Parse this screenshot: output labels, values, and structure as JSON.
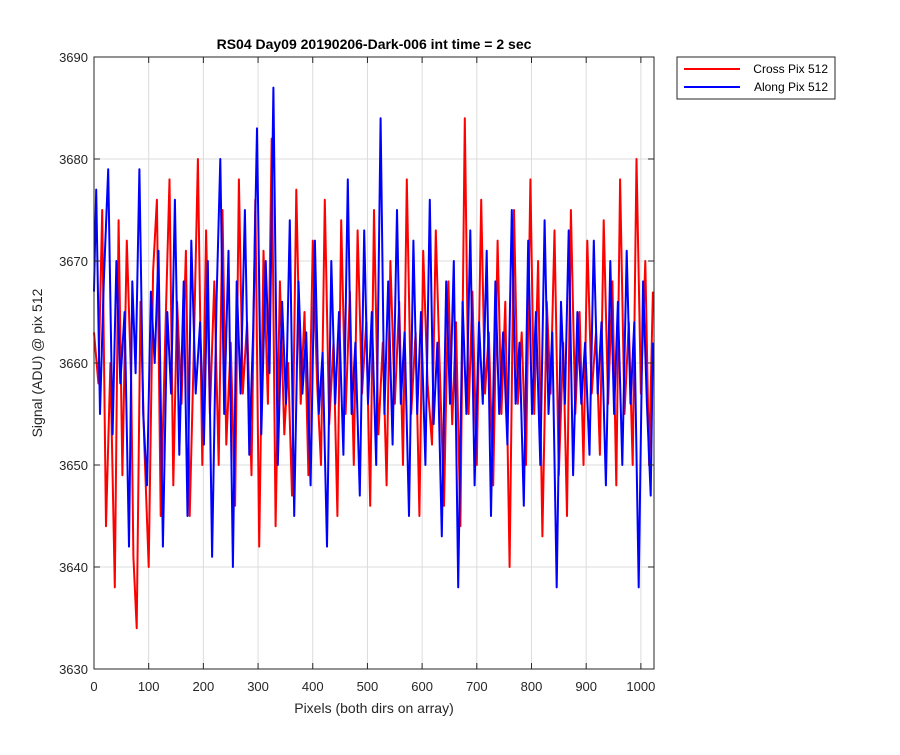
{
  "chart_data": {
    "type": "line",
    "title": "RS04 Day09 20190206-Dark-006 int time = 2 sec",
    "xlabel": "Pixels (both dirs on array)",
    "ylabel": "Signal (ADU) @ pix 512",
    "xlim": [
      0,
      1024
    ],
    "ylim": [
      3630,
      3690
    ],
    "xticks": [
      0,
      100,
      200,
      300,
      400,
      500,
      600,
      700,
      800,
      900,
      1000
    ],
    "yticks": [
      3630,
      3640,
      3650,
      3660,
      3670,
      3680,
      3690
    ],
    "grid": true,
    "legend_position": "outside-top-right",
    "series": [
      {
        "name": "Cross Pix 512",
        "color": "#ff0000",
        "x": [
          0,
          8,
          15,
          22,
          30,
          38,
          45,
          52,
          60,
          68,
          72,
          78,
          85,
          92,
          100,
          108,
          115,
          122,
          130,
          138,
          145,
          152,
          160,
          168,
          175,
          182,
          190,
          198,
          205,
          212,
          220,
          228,
          235,
          242,
          250,
          258,
          265,
          272,
          280,
          288,
          295,
          302,
          310,
          318,
          325,
          332,
          340,
          348,
          355,
          362,
          370,
          378,
          385,
          392,
          400,
          408,
          415,
          422,
          430,
          438,
          445,
          452,
          460,
          468,
          475,
          482,
          490,
          498,
          505,
          512,
          520,
          528,
          535,
          542,
          550,
          558,
          565,
          572,
          580,
          588,
          595,
          602,
          610,
          618,
          625,
          632,
          640,
          648,
          655,
          662,
          670,
          678,
          685,
          692,
          700,
          708,
          715,
          722,
          730,
          738,
          745,
          752,
          760,
          768,
          775,
          782,
          790,
          798,
          805,
          812,
          820,
          828,
          835,
          842,
          850,
          858,
          865,
          872,
          880,
          888,
          895,
          902,
          910,
          918,
          925,
          932,
          940,
          948,
          955,
          962,
          970,
          978,
          985,
          992,
          1000,
          1008,
          1015,
          1022
        ],
        "values": [
          3663,
          3658,
          3675,
          3644,
          3660,
          3638,
          3674,
          3649,
          3672,
          3658,
          3641,
          3634,
          3666,
          3652,
          3640,
          3669,
          3676,
          3645,
          3662,
          3678,
          3648,
          3666,
          3656,
          3671,
          3645,
          3660,
          3680,
          3650,
          3673,
          3655,
          3668,
          3650,
          3675,
          3652,
          3662,
          3646,
          3678,
          3657,
          3664,
          3649,
          3676,
          3642,
          3671,
          3656,
          3682,
          3644,
          3668,
          3653,
          3660,
          3647,
          3677,
          3656,
          3665,
          3649,
          3672,
          3658,
          3650,
          3676,
          3654,
          3662,
          3645,
          3674,
          3655,
          3667,
          3650,
          3673,
          3657,
          3664,
          3646,
          3675,
          3653,
          3662,
          3648,
          3670,
          3656,
          3666,
          3650,
          3678,
          3655,
          3663,
          3645,
          3671,
          3658,
          3652,
          3673,
          3660,
          3646,
          3668,
          3654,
          3664,
          3644,
          3684,
          3655,
          3667,
          3650,
          3676,
          3657,
          3663,
          3648,
          3672,
          3655,
          3666,
          3640,
          3675,
          3656,
          3663,
          3650,
          3678,
          3655,
          3670,
          3643,
          3666,
          3657,
          3673,
          3649,
          3662,
          3645,
          3675,
          3655,
          3665,
          3650,
          3672,
          3657,
          3663,
          3651,
          3674,
          3656,
          3668,
          3648,
          3678,
          3655,
          3664,
          3650,
          3680,
          3657,
          3670,
          3650,
          3667
        ]
      },
      {
        "name": "Along Pix 512",
        "color": "#0000ff",
        "x": [
          0,
          4,
          11,
          18,
          26,
          34,
          41,
          48,
          56,
          64,
          70,
          76,
          83,
          90,
          97,
          104,
          111,
          118,
          126,
          134,
          141,
          148,
          156,
          164,
          171,
          178,
          186,
          194,
          201,
          208,
          216,
          224,
          231,
          238,
          246,
          254,
          261,
          268,
          276,
          284,
          291,
          298,
          306,
          314,
          321,
          328,
          336,
          344,
          351,
          358,
          366,
          374,
          381,
          388,
          396,
          404,
          411,
          418,
          426,
          434,
          441,
          448,
          456,
          464,
          471,
          478,
          486,
          494,
          501,
          508,
          516,
          524,
          531,
          538,
          546,
          554,
          561,
          568,
          576,
          584,
          591,
          598,
          606,
          614,
          621,
          628,
          636,
          644,
          651,
          658,
          666,
          674,
          681,
          688,
          696,
          704,
          711,
          718,
          726,
          734,
          741,
          748,
          756,
          764,
          771,
          778,
          786,
          794,
          801,
          808,
          816,
          824,
          831,
          838,
          846,
          854,
          861,
          868,
          876,
          884,
          891,
          898,
          906,
          914,
          921,
          928,
          936,
          944,
          951,
          958,
          966,
          974,
          981,
          988,
          996,
          1004,
          1011,
          1018,
          1022
        ],
        "values": [
          3667,
          3677,
          3655,
          3668,
          3679,
          3653,
          3670,
          3658,
          3665,
          3642,
          3668,
          3659,
          3679,
          3655,
          3648,
          3667,
          3660,
          3671,
          3642,
          3665,
          3657,
          3676,
          3651,
          3668,
          3645,
          3672,
          3657,
          3664,
          3652,
          3670,
          3641,
          3666,
          3680,
          3655,
          3671,
          3640,
          3668,
          3657,
          3675,
          3651,
          3663,
          3683,
          3653,
          3670,
          3659,
          3687,
          3650,
          3666,
          3656,
          3674,
          3645,
          3668,
          3657,
          3663,
          3648,
          3672,
          3655,
          3661,
          3642,
          3670,
          3656,
          3665,
          3651,
          3678,
          3655,
          3662,
          3647,
          3673,
          3656,
          3665,
          3650,
          3684,
          3655,
          3668,
          3652,
          3675,
          3656,
          3663,
          3645,
          3672,
          3655,
          3665,
          3650,
          3676,
          3654,
          3662,
          3643,
          3668,
          3656,
          3670,
          3638,
          3666,
          3655,
          3673,
          3648,
          3664,
          3656,
          3671,
          3645,
          3668,
          3655,
          3663,
          3652,
          3675,
          3656,
          3662,
          3646,
          3672,
          3655,
          3665,
          3650,
          3674,
          3655,
          3663,
          3638,
          3666,
          3656,
          3673,
          3649,
          3665,
          3656,
          3662,
          3651,
          3672,
          3657,
          3664,
          3648,
          3670,
          3655,
          3666,
          3650,
          3671,
          3656,
          3664,
          3638,
          3668,
          3656,
          3647,
          3662
        ]
      }
    ]
  }
}
